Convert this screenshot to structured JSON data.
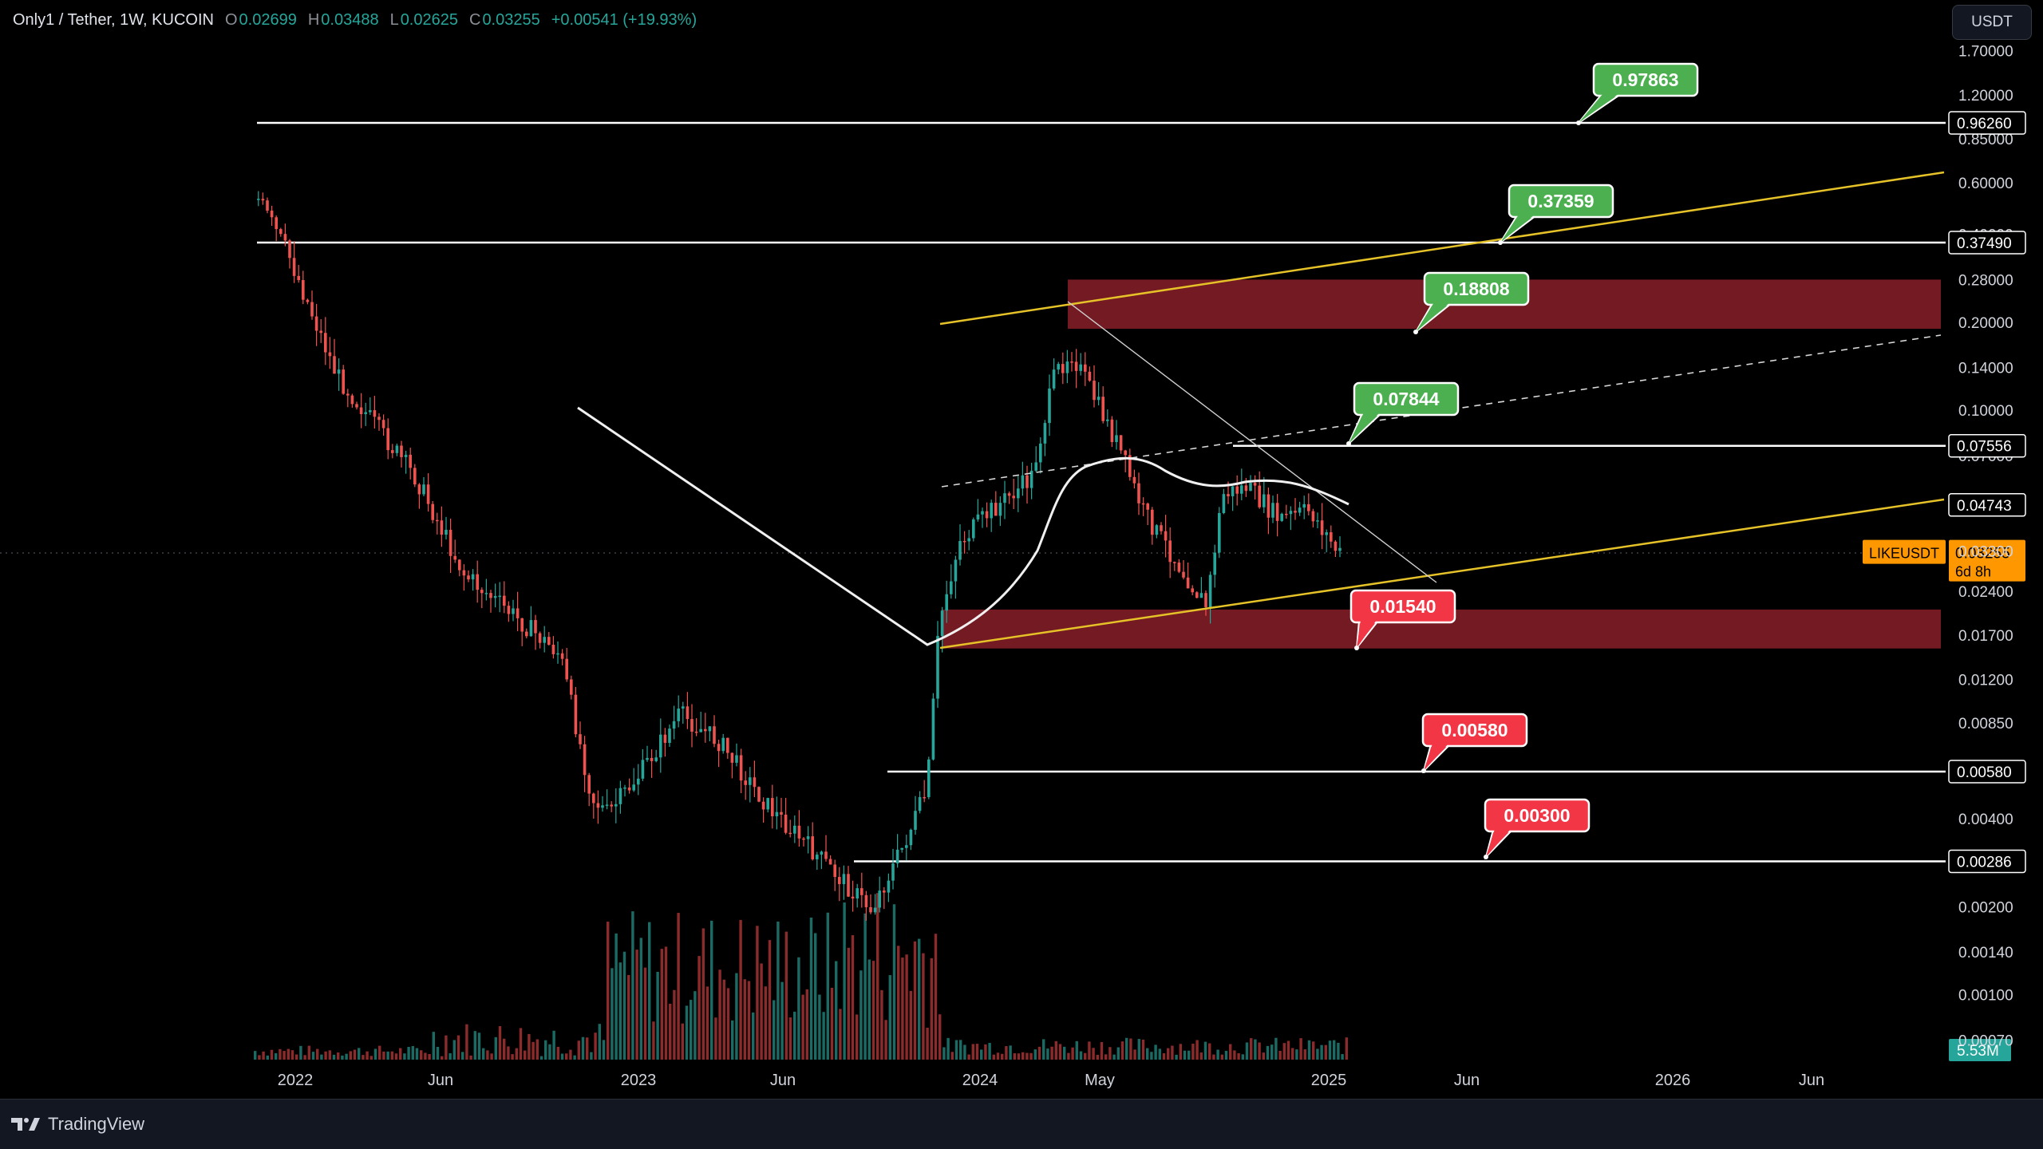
{
  "header": {
    "symbol": "Only1 / Tether, 1W, KUCOIN",
    "open_label": "O",
    "open": "0.02699",
    "high_label": "H",
    "high": "0.03488",
    "low_label": "L",
    "low": "0.02625",
    "close_label": "C",
    "close": "0.03255",
    "change": "+0.00541 (+19.93%)"
  },
  "currency_button": "USDT",
  "branding": {
    "name": "TradingView",
    "icon": "tradingview-logo-icon"
  },
  "colors": {
    "background": "#000000",
    "up": "#26a69a",
    "down": "#ef5350",
    "zone": "#7a1b24",
    "trendline": "#e6c229",
    "level_line": "#ffffff",
    "callout_green": "#4caf50",
    "callout_red": "#f23645",
    "last_price": "#ff9800",
    "volume_badge": "#26a69a"
  },
  "chart_data": {
    "type": "candlestick",
    "pair": "LIKEUSDT",
    "timeframe": "1W",
    "y_scale": "log",
    "ylim": [
      0.0007,
      1.7
    ],
    "y_ticks": [
      "1.70000",
      "1.20000",
      "0.85000",
      "0.60000",
      "0.40000",
      "0.28000",
      "0.20000",
      "0.14000",
      "0.10000",
      "0.07000",
      "0.04800",
      "0.03300",
      "0.02400",
      "0.01700",
      "0.01200",
      "0.00850",
      "0.00600",
      "0.00400",
      "0.00286",
      "0.00200",
      "0.00140",
      "0.00100",
      "0.00070"
    ],
    "x_ticks": [
      "2022",
      "Jun",
      "2023",
      "Jun",
      "2024",
      "May",
      "2025",
      "Jun",
      "2026",
      "Jun"
    ],
    "last_price": {
      "label": "LIKEUSDT",
      "value": "0.03255",
      "countdown": "6d 8h"
    },
    "volume_last": "5.53M",
    "price_levels": [
      {
        "name": "level-0.96260",
        "value": 0.9626,
        "label": "0.96260"
      },
      {
        "name": "level-0.37490",
        "value": 0.3749,
        "label": "0.37490"
      },
      {
        "name": "level-0.07556",
        "value": 0.07556,
        "label": "0.07556"
      },
      {
        "name": "level-0.04743",
        "value": 0.04743,
        "label": "0.04743"
      },
      {
        "name": "level-0.00580",
        "value": 0.0058,
        "label": "0.00580"
      },
      {
        "name": "level-0.00286",
        "value": 0.00286,
        "label": "0.00286"
      }
    ],
    "zones": [
      {
        "name": "resistance-zone",
        "low": 0.19,
        "high": 0.28
      },
      {
        "name": "support-zone",
        "low": 0.0153,
        "high": 0.0208
      }
    ],
    "targets": [
      {
        "value": "0.97863",
        "kind": "up"
      },
      {
        "value": "0.37359",
        "kind": "up"
      },
      {
        "value": "0.18808",
        "kind": "up"
      },
      {
        "value": "0.07844",
        "kind": "up"
      },
      {
        "value": "0.01540",
        "kind": "down"
      },
      {
        "value": "0.00580",
        "kind": "down"
      },
      {
        "value": "0.00300",
        "kind": "down"
      }
    ]
  }
}
